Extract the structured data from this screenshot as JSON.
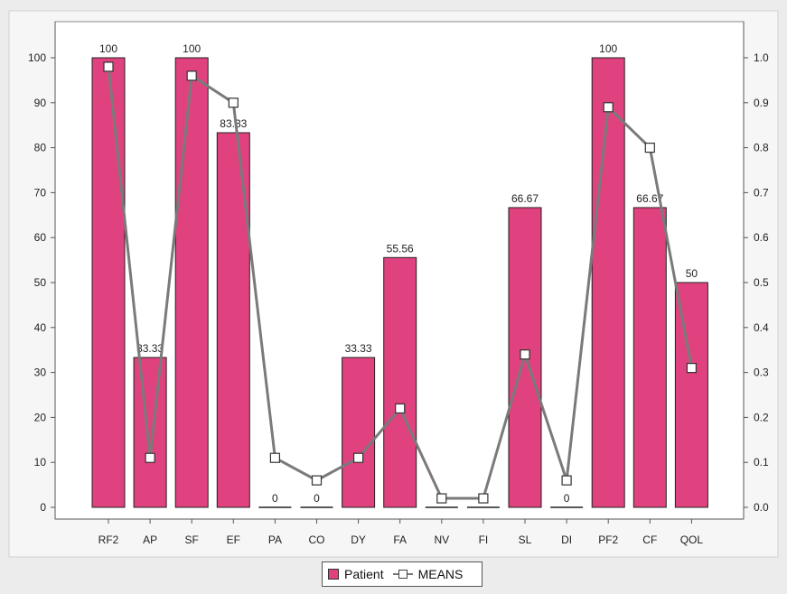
{
  "chart_data": {
    "type": "bar",
    "categories": [
      "RF2",
      "AP",
      "SF",
      "EF",
      "PA",
      "CO",
      "DY",
      "FA",
      "NV",
      "FI",
      "SL",
      "DI",
      "PF2",
      "CF",
      "QOL"
    ],
    "series": [
      {
        "name": "Patient",
        "type": "bar",
        "axis": "left",
        "values": [
          100,
          33.33,
          100,
          83.33,
          0,
          0,
          33.33,
          55.56,
          0,
          0,
          66.67,
          0,
          100,
          66.67,
          50
        ],
        "labels": [
          "100",
          "33.33",
          "100",
          "83.33",
          "0",
          "0",
          "33.33",
          "55.56",
          "0",
          "0",
          "66.67",
          "0",
          "100",
          "66.67",
          "50"
        ]
      },
      {
        "name": "MEANS",
        "type": "line",
        "axis": "right",
        "values": [
          0.98,
          0.11,
          0.96,
          0.9,
          0.11,
          0.06,
          0.11,
          0.22,
          0.02,
          0.02,
          0.34,
          0.06,
          0.89,
          0.8,
          0.31
        ]
      }
    ],
    "ylim_left": [
      0,
      100
    ],
    "ylim_right": [
      0,
      1.0
    ],
    "yticks_left": [
      "0",
      "10",
      "20",
      "30",
      "40",
      "50",
      "60",
      "70",
      "80",
      "90",
      "100"
    ],
    "yticks_right": [
      "0.0",
      "0.1",
      "0.2",
      "0.3",
      "0.4",
      "0.5",
      "0.6",
      "0.7",
      "0.8",
      "0.9",
      "1.0"
    ],
    "title": "",
    "xlabel": "",
    "ylabel": "",
    "grid": false,
    "legend_position": "bottom-center",
    "colors": {
      "bar": "#e0427f",
      "line": "#7a7a7a",
      "marker_fill": "#ffffff",
      "plot_bg": "#ffffff",
      "page_bg": "#ececec"
    }
  },
  "legend": {
    "patient": "Patient",
    "means": "MEANS"
  }
}
